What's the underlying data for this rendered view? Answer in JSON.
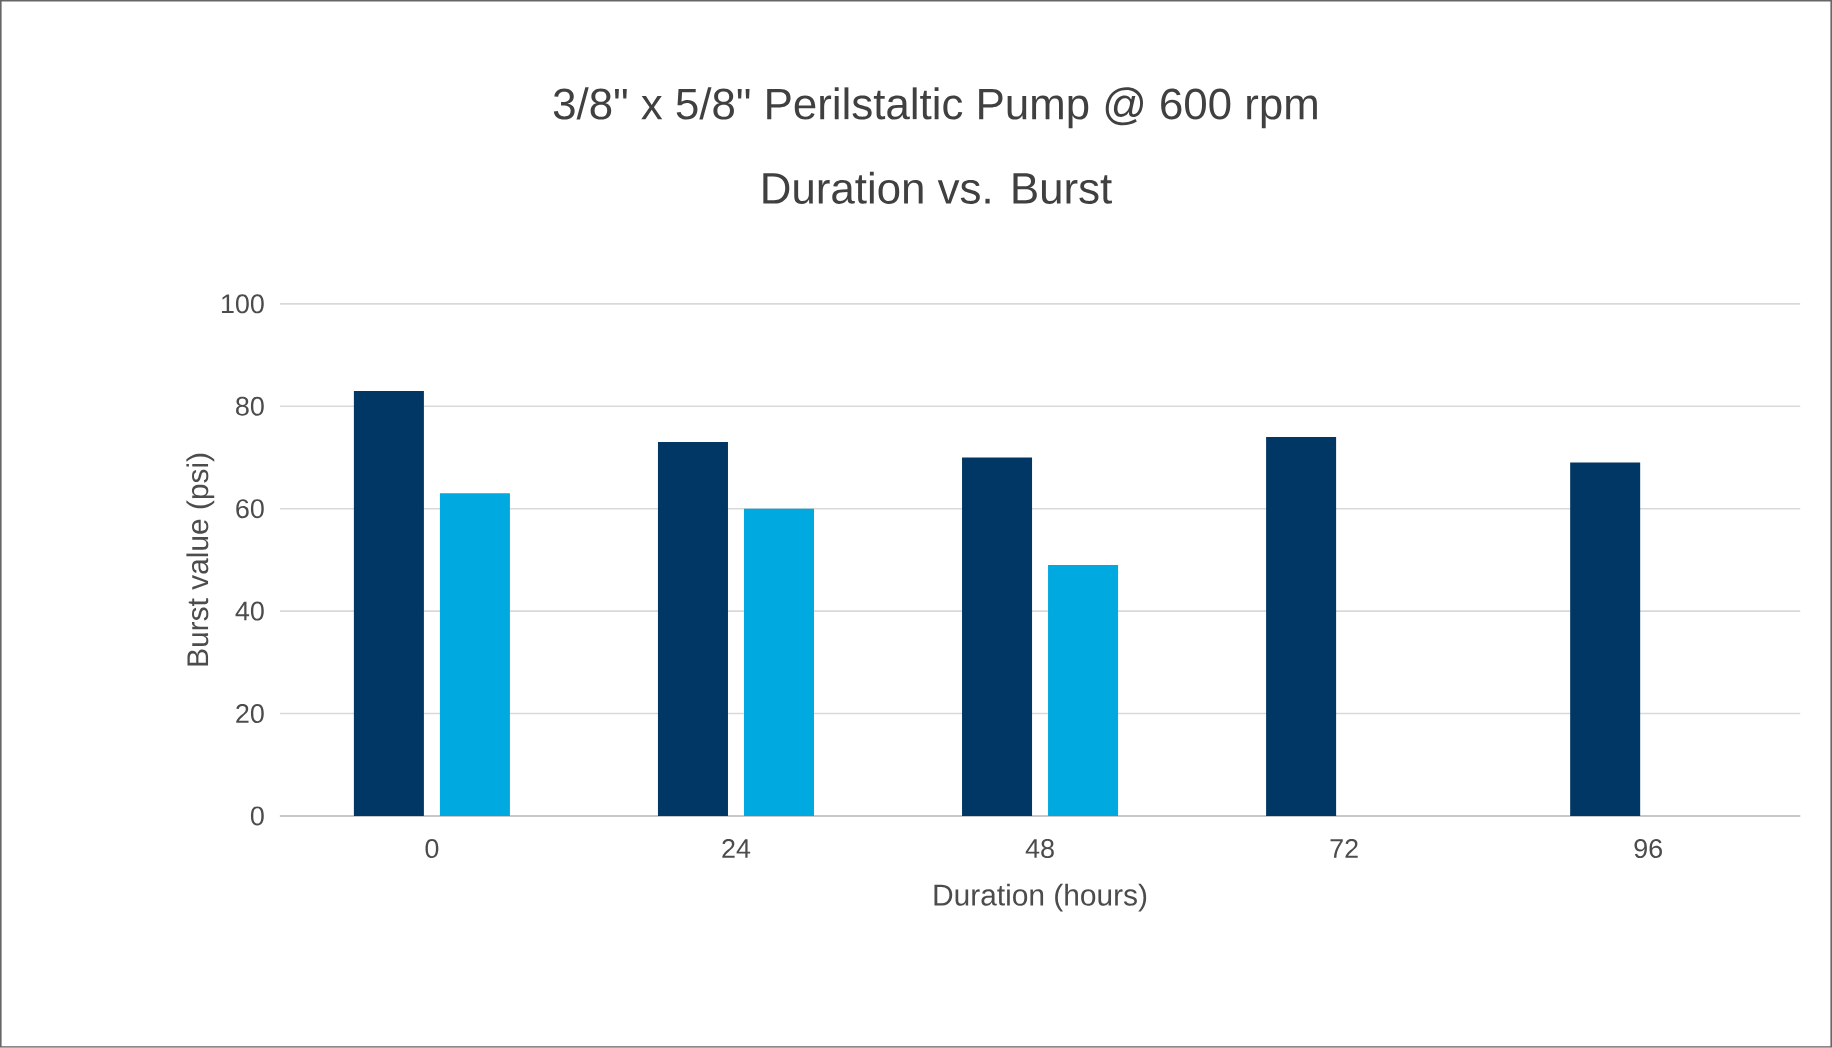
{
  "chart_data": {
    "type": "bar",
    "title": "3/8\" x 5/8\" Perilstaltic Pump @ 600 rpm",
    "subtitle": "Duration vs. Burst",
    "xlabel": "Duration (hours)",
    "ylabel": "Burst value (psi)",
    "categories": [
      "0",
      "24",
      "48",
      "72",
      "96"
    ],
    "series": [
      {
        "color": "#003764",
        "values": [
          83,
          73,
          70,
          74,
          69
        ]
      },
      {
        "color": "#00a9e0",
        "values": [
          63,
          60,
          49,
          null,
          null
        ]
      }
    ],
    "ylim": [
      0,
      100
    ],
    "yticks": [
      0,
      20,
      40,
      60,
      80,
      100
    ],
    "grid": "y"
  }
}
